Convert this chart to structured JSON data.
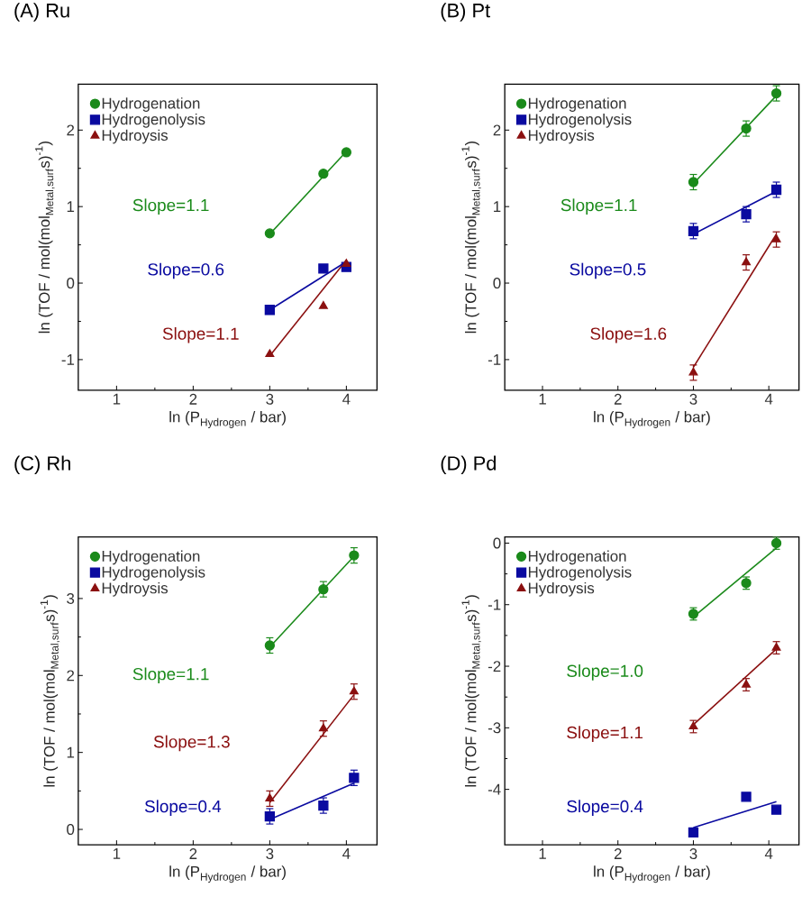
{
  "chart_data": [
    {
      "type": "scatter",
      "title": "(A) Ru",
      "xlabel": "\\text{ln (P}_{\\text{Hydrogen}}\\text{ / bar)}",
      "ylabel": "\\text{ln (TOF / mol(mol}_{\\text{Metal,surf}}\\text{s)}^{\\text{-1}}\\text{)}",
      "x": [
        3,
        3.7,
        4.0
      ],
      "xlim": [
        0.5,
        4.4
      ],
      "xticks": [
        1,
        2,
        3,
        4
      ],
      "ylim": [
        -1.4,
        2.6
      ],
      "yticks": [
        -1,
        0,
        1,
        2
      ],
      "legend": "top left",
      "series": [
        {
          "name": "Hydrogenation",
          "marker": "circle",
          "color": "#1a8a1a",
          "values": [
            0.65,
            1.43,
            1.71
          ]
        },
        {
          "name": "Hydrogenolysis",
          "marker": "square",
          "color": "#0a0aa0",
          "values": [
            -0.35,
            0.19,
            0.21
          ]
        },
        {
          "name": "Hydroysis",
          "marker": "triangle",
          "color": "#8b1010",
          "values": [
            -0.93,
            -0.3,
            0.25
          ]
        },
        {
          "type": "line",
          "color": "#1a8a1a",
          "x": [
            3,
            4.0
          ],
          "values": [
            0.64,
            1.72
          ]
        },
        {
          "type": "line",
          "color": "#0a0aa0",
          "x": [
            3,
            4.0
          ],
          "values": [
            -0.35,
            0.28
          ]
        },
        {
          "type": "line",
          "color": "#8b1010",
          "x": [
            3,
            4.0
          ],
          "values": [
            -0.95,
            0.3
          ]
        }
      ],
      "annotations": [
        "Slope=1.1",
        "Slope=0.6",
        "Slope=1.1"
      ]
    },
    {
      "type": "scatter",
      "title": "(B) Pt",
      "xlabel": "\\text{ln (P}_{\\text{Hydrogen}}\\text{ / bar)}",
      "ylabel": "\\text{ln (TOF / mol(mol}_{\\text{Metal,surf}}\\text{s)}^{\\text{-1}}\\text{)}",
      "x": [
        3,
        3.7,
        4.1
      ],
      "xlim": [
        0.5,
        4.4
      ],
      "xticks": [
        1,
        2,
        3,
        4
      ],
      "ylim": [
        -1.4,
        2.6
      ],
      "yticks": [
        -1,
        0,
        1,
        2
      ],
      "legend": "top left",
      "series": [
        {
          "name": "Hydrogenation",
          "marker": "circle",
          "color": "#1a8a1a",
          "values": [
            1.32,
            2.02,
            2.48
          ],
          "errors": [
            0.1,
            0.1,
            0.1
          ]
        },
        {
          "name": "Hydrogenolysis",
          "marker": "square",
          "color": "#0a0aa0",
          "values": [
            0.68,
            0.9,
            1.22
          ],
          "errors": [
            0.1,
            0.1,
            0.1
          ]
        },
        {
          "name": "Hydroysis",
          "marker": "triangle",
          "color": "#8b1010",
          "values": [
            -1.17,
            0.27,
            0.57
          ],
          "errors": [
            0.1,
            0.1,
            0.1
          ]
        },
        {
          "type": "line",
          "color": "#1a8a1a",
          "x": [
            3,
            4.1
          ],
          "values": [
            1.3,
            2.45
          ]
        },
        {
          "type": "line",
          "color": "#0a0aa0",
          "x": [
            3,
            4.1
          ],
          "values": [
            0.64,
            1.2
          ]
        },
        {
          "type": "line",
          "color": "#8b1010",
          "x": [
            3,
            4.1
          ],
          "values": [
            -1.1,
            0.64
          ]
        }
      ],
      "annotations": [
        "Slope=1.1",
        "Slope=0.5",
        "Slope=1.6"
      ]
    },
    {
      "type": "scatter",
      "title": "(C) Rh",
      "xlabel": "\\text{ln (P}_{\\text{Hydrogen}}\\text{ / bar)}",
      "ylabel": "\\text{ln (TOF / mol(mol}_{\\text{Metal,surf}}\\text{s)}^{\\text{-1}}\\text{)}",
      "x": [
        3,
        3.7,
        4.1
      ],
      "xlim": [
        0.5,
        4.4
      ],
      "xticks": [
        1,
        2,
        3,
        4
      ],
      "ylim": [
        -0.2,
        3.8
      ],
      "yticks": [
        0,
        1,
        2,
        3
      ],
      "legend": "top left",
      "series": [
        {
          "name": "Hydrogenation",
          "marker": "circle",
          "color": "#1a8a1a",
          "values": [
            2.39,
            3.12,
            3.56
          ],
          "errors": [
            0.1,
            0.1,
            0.1
          ]
        },
        {
          "name": "Hydrogenolysis",
          "marker": "square",
          "color": "#0a0aa0",
          "values": [
            0.17,
            0.31,
            0.67
          ],
          "errors": [
            0.1,
            0.1,
            0.1
          ]
        },
        {
          "name": "Hydroysis",
          "marker": "triangle",
          "color": "#8b1010",
          "values": [
            0.4,
            1.31,
            1.79
          ],
          "errors": [
            0.1,
            0.1,
            0.1
          ]
        },
        {
          "type": "line",
          "color": "#1a8a1a",
          "x": [
            3,
            4.1
          ],
          "values": [
            2.37,
            3.55
          ]
        },
        {
          "type": "line",
          "color": "#8b1010",
          "x": [
            3,
            4.1
          ],
          "values": [
            0.35,
            1.75
          ]
        },
        {
          "type": "line",
          "color": "#0a0aa0",
          "x": [
            3,
            4.1
          ],
          "values": [
            0.13,
            0.6
          ]
        }
      ],
      "annotations": [
        "Slope=1.1",
        "Slope=1.3",
        "Slope=0.4"
      ]
    },
    {
      "type": "scatter",
      "title": "(D) Pd",
      "xlabel": "\\text{ln (P}_{\\text{Hydrogen}}\\text{ / bar)}",
      "ylabel": "\\text{ln (TOF / mol(mol}_{\\text{Metal,surf}}\\text{s)}^{\\text{-1}}\\text{)}",
      "x": [
        3,
        3.7,
        4.1
      ],
      "xlim": [
        0.5,
        4.4
      ],
      "xticks": [
        1,
        2,
        3,
        4
      ],
      "ylim": [
        -4.9,
        0.1
      ],
      "yticks": [
        -4,
        -3,
        -2,
        -1,
        0
      ],
      "legend": "top left",
      "series": [
        {
          "name": "Hydrogenation",
          "marker": "circle",
          "color": "#1a8a1a",
          "values": [
            -1.15,
            -0.65,
            0.0
          ],
          "errors": [
            0.1,
            0.1,
            0.1
          ]
        },
        {
          "name": "Hydrogenolysis",
          "marker": "square",
          "color": "#0a0aa0",
          "values": [
            -4.7,
            -4.12,
            -4.33
          ]
        },
        {
          "name": "Hydroysis",
          "marker": "triangle",
          "color": "#8b1010",
          "values": [
            -2.98,
            -2.3,
            -1.7
          ],
          "errors": [
            0.1,
            0.1,
            0.1
          ]
        },
        {
          "type": "line",
          "color": "#1a8a1a",
          "x": [
            3,
            4.1
          ],
          "values": [
            -1.2,
            -0.08
          ]
        },
        {
          "type": "line",
          "color": "#8b1010",
          "x": [
            3,
            4.1
          ],
          "values": [
            -2.95,
            -1.72
          ]
        },
        {
          "type": "line",
          "color": "#0a0aa0",
          "x": [
            3,
            4.1
          ],
          "values": [
            -4.62,
            -4.2
          ]
        }
      ],
      "annotations": [
        "Slope=1.0",
        "Slope=1.1",
        "Slope=0.4"
      ]
    }
  ]
}
